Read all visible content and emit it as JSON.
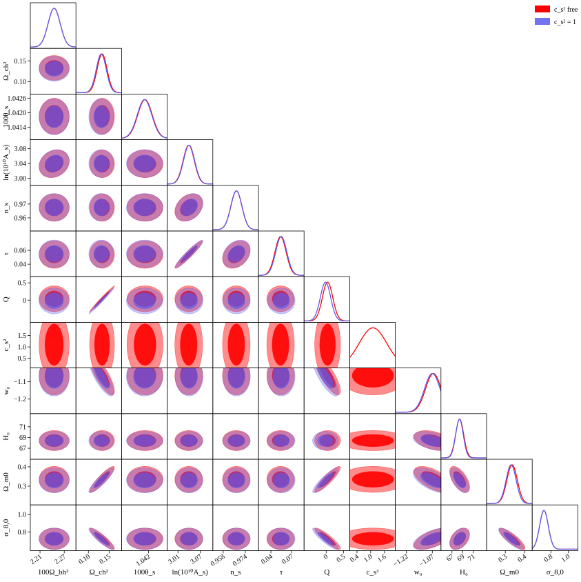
{
  "chart_data": {
    "type": "corner",
    "parameters": [
      {
        "label": "100Ω_bh²",
        "lim": [
          2.186,
          2.299
        ],
        "xticks": [
          2.21,
          2.27
        ]
      },
      {
        "label": "Ω_ch²",
        "lim": [
          0.07,
          0.18
        ],
        "xticks": [
          {
            "value": 0.1,
            "label": "0.10"
          },
          0.15
        ],
        "yticks": [
          {
            "value": 0.1,
            "label": "0.10"
          },
          0.15
        ]
      },
      {
        "label": "100θ_s",
        "lim": [
          1.04088,
          1.04277
        ],
        "xticks": [
          1.042
        ],
        "yticks": [
          1.0414,
          {
            "value": 1.042,
            "label": "1.0420"
          },
          1.0426
        ]
      },
      {
        "label": "ln(10¹⁰A_s)",
        "lim": [
          2.981,
          3.104
        ],
        "xticks": [
          3.01,
          3.07
        ],
        "yticks": [
          {
            "value": 3,
            "label": "3.00"
          },
          3.04,
          3.08
        ]
      },
      {
        "label": "n_s",
        "lim": [
          0.9505,
          0.9835
        ],
        "xticks": [
          0.958,
          0.974
        ],
        "yticks": [
          0.96,
          0.97
        ]
      },
      {
        "label": "τ",
        "lim": [
          0.022,
          0.088
        ],
        "xticks": [
          0.04,
          0.07
        ],
        "yticks": [
          0.04,
          0.06
        ]
      },
      {
        "label": "Q",
        "lim": [
          -0.64,
          0.68
        ],
        "xticks": [
          0,
          0.5
        ],
        "yticks": [
          0,
          0.5
        ]
      },
      {
        "label": "c_s²",
        "lim": [
          0.08,
          2.08
        ],
        "xticks": [
          0.4,
          {
            "value": 1,
            "label": "1.0"
          },
          1.6
        ],
        "yticks": [
          0.5,
          {
            "value": 1,
            "label": "1.0"
          },
          1.5
        ]
      },
      {
        "label": "w₀",
        "lim": [
          -1.284,
          -1.02
        ],
        "xticks": [
          {
            "value": -1.22,
            "label": "−1.22"
          },
          {
            "value": -1.07,
            "label": "−1.07"
          }
        ],
        "yticks": [
          {
            "value": -1.2,
            "label": "−1.2"
          },
          {
            "value": -1.1,
            "label": "−1.1"
          }
        ]
      },
      {
        "label": "H₀",
        "lim": [
          64.95,
          73.45
        ],
        "xticks": [
          67,
          69,
          71
        ],
        "yticks": [
          67,
          69,
          71
        ]
      },
      {
        "label": "Ω_m0",
        "lim": [
          0.203,
          0.439
        ],
        "xticks": [
          0.3,
          0.4
        ],
        "yticks": [
          0.3,
          0.4
        ]
      },
      {
        "label": "σ_8,0",
        "lim": [
          0.584,
          1.112
        ],
        "xticks": [
          0.8,
          {
            "value": 1,
            "label": "1.0"
          }
        ],
        "yticks": [
          0.8,
          {
            "value": 1,
            "label": "1.0"
          }
        ]
      }
    ],
    "series": [
      {
        "name": "c_s² free",
        "color": "#ff0000",
        "means": [
          2.245,
          0.133,
          1.04185,
          3.039,
          0.9675,
          0.054,
          0.04,
          1.1,
          -1.064,
          68.43,
          0.335,
          0.72
        ],
        "sigmas": [
          0.015,
          0.012,
          0.0003,
          0.015,
          0.004,
          0.008,
          0.15,
          0.6,
          0.045,
          0.75,
          0.027,
          0.05
        ]
      },
      {
        "name": "c_s² = 1",
        "color": "#5b5bef",
        "means": [
          2.245,
          0.131,
          1.04183,
          3.04,
          0.9676,
          0.055,
          -0.02,
          null,
          -1.07,
          68.4,
          0.33,
          0.72
        ],
        "sigmas": [
          0.015,
          0.012,
          0.0003,
          0.015,
          0.004,
          0.008,
          0.15,
          null,
          0.045,
          0.7,
          0.026,
          0.05
        ]
      }
    ],
    "correlations": [
      {
        "pair": [
          0,
          3
        ],
        "value": 0.2
      },
      {
        "pair": [
          3,
          5
        ],
        "value": 0.95
      },
      {
        "pair": [
          3,
          4
        ],
        "value": 0.3
      },
      {
        "pair": [
          4,
          5
        ],
        "value": 0.3
      },
      {
        "pair": [
          1,
          6
        ],
        "value": 0.99
      },
      {
        "pair": [
          1,
          10
        ],
        "value": 0.9
      },
      {
        "pair": [
          6,
          10
        ],
        "value": 0.9
      },
      {
        "pair": [
          1,
          11
        ],
        "value": -0.9
      },
      {
        "pair": [
          6,
          11
        ],
        "value": -0.9
      },
      {
        "pair": [
          10,
          11
        ],
        "value": -0.85
      },
      {
        "pair": [
          1,
          8
        ],
        "value": -0.8
      },
      {
        "pair": [
          6,
          8
        ],
        "value": -0.8
      },
      {
        "pair": [
          8,
          10
        ],
        "value": -0.6
      },
      {
        "pair": [
          8,
          11
        ],
        "value": 0.6
      },
      {
        "pair": [
          8,
          9
        ],
        "value": -0.4
      },
      {
        "pair": [
          9,
          10
        ],
        "value": -0.6
      },
      {
        "pair": [
          9,
          11
        ],
        "value": 0.4
      }
    ],
    "legend": "upper right"
  }
}
